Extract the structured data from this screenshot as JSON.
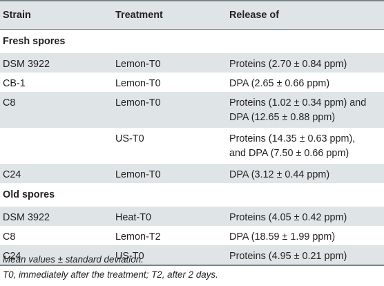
{
  "headers": {
    "strain": "Strain",
    "treatment": "Treatment",
    "release": "Release of"
  },
  "sections": {
    "fresh": "Fresh spores",
    "old": "Old spores"
  },
  "rows": [
    {
      "strain": "DSM 3922",
      "treatment": "Lemon-T0",
      "release_line1": "Proteins (2.70 ± 0.84 ppm)",
      "release_line2": ""
    },
    {
      "strain": "CB-1",
      "treatment": "Lemon-T0",
      "release_line1": "DPA (2.65 ± 0.66 ppm)",
      "release_line2": ""
    },
    {
      "strain": "C8",
      "treatment": "Lemon-T0",
      "release_line1": "Proteins (1.02 ± 0.34 ppm) and",
      "release_line2": "DPA (12.65 ± 0.88 ppm)"
    },
    {
      "strain": "",
      "treatment": "US-T0",
      "release_line1": "Proteins (14.35 ± 0.63 ppm),",
      "release_line2": "and DPA (7.50 ± 0.66 ppm)"
    },
    {
      "strain": "C24",
      "treatment": "Lemon-T0",
      "release_line1": "DPA (3.12 ± 0.44 ppm)",
      "release_line2": ""
    },
    {
      "strain": "DSM 3922",
      "treatment": "Heat-T0",
      "release_line1": "Proteins (4.05 ± 0.42 ppm)",
      "release_line2": ""
    },
    {
      "strain": "C8",
      "treatment": "Lemon-T2",
      "release_line1": "DPA (18.59 ± 1.99 ppm)",
      "release_line2": ""
    },
    {
      "strain": "C24",
      "treatment": "US-T0",
      "release_line1": "Proteins (4.95 ± 0.21 ppm)",
      "release_line2": ""
    }
  ],
  "footnotes": {
    "line1": "Mean values ± standard deviation.",
    "line2": "T0, immediately after the treatment; T2, after 2 days."
  }
}
